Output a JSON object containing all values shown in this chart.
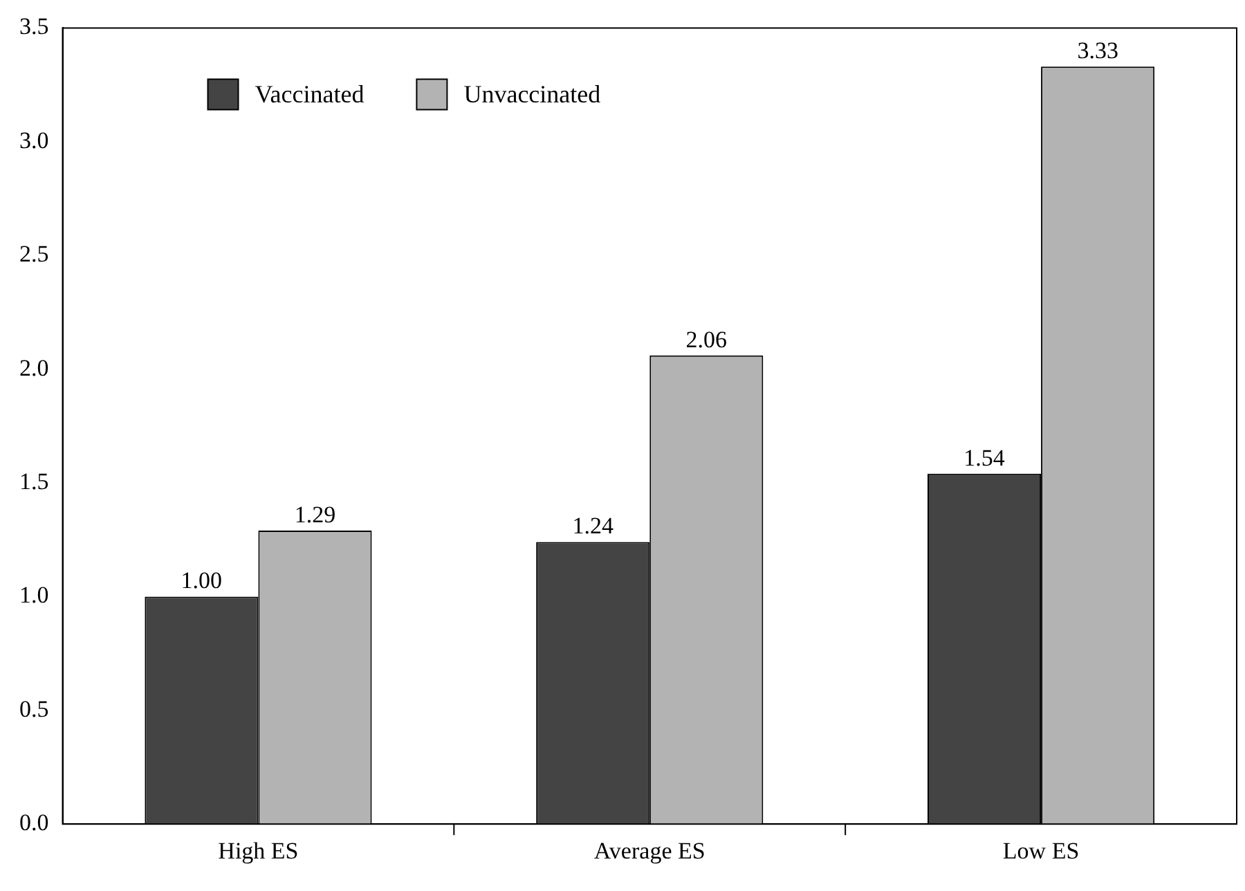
{
  "chart_data": {
    "type": "bar",
    "categories": [
      "High ES",
      "Average ES",
      "Low ES"
    ],
    "series": [
      {
        "name": "Vaccinated",
        "color": "#444444",
        "values": [
          1.0,
          1.24,
          1.54
        ],
        "value_labels": [
          "1.00",
          "1.24",
          "1.54"
        ]
      },
      {
        "name": "Unvaccinated",
        "color": "#b3b3b3",
        "values": [
          1.29,
          2.06,
          3.33
        ],
        "value_labels": [
          "1.29",
          "2.06",
          "3.33"
        ]
      }
    ],
    "ylim": [
      0,
      3.5
    ],
    "yticks": [
      {
        "value": 0,
        "label": "0.0"
      },
      {
        "value": 0.5,
        "label": "0.5"
      },
      {
        "value": 1,
        "label": "1.0"
      },
      {
        "value": 1.5,
        "label": "1.5"
      },
      {
        "value": 2,
        "label": "2.0"
      },
      {
        "value": 2.5,
        "label": "2.5"
      },
      {
        "value": 3,
        "label": "3.0"
      },
      {
        "value": 3.5,
        "label": "3.5"
      }
    ],
    "legend": "top left",
    "grid": false
  }
}
